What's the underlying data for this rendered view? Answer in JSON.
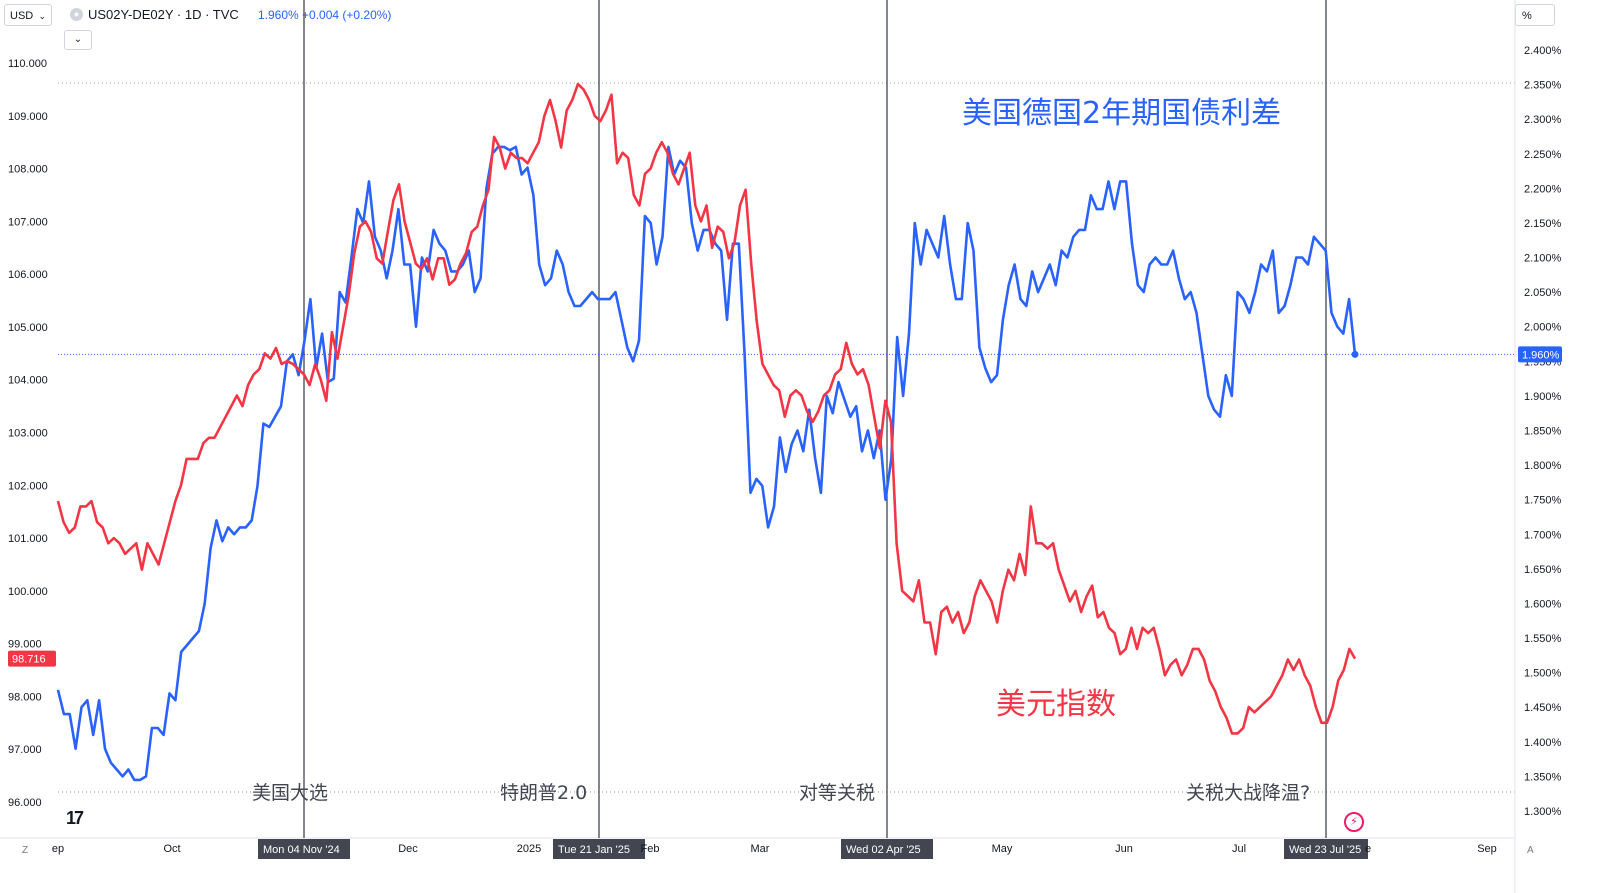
{
  "header": {
    "currency_select": "USD",
    "symbol": "US02Y-DE02Y · 1D · TVC",
    "price_text": "1.960% +0.004 (+0.20%)",
    "right_unit": "%"
  },
  "bottom": {
    "z_label": "Z",
    "a_label": "A"
  },
  "chart_data": {
    "type": "line",
    "left_axis": {
      "ticks": [
        "110.000",
        "109.000",
        "108.000",
        "107.000",
        "106.000",
        "105.000",
        "104.000",
        "103.000",
        "102.000",
        "101.000",
        "100.000",
        "99.000",
        "98.000",
        "97.000",
        "96.000"
      ],
      "ylim": [
        96.0,
        110.0
      ],
      "current_label": "98.716"
    },
    "right_axis": {
      "ticks": [
        "2.400%",
        "2.350%",
        "2.300%",
        "2.250%",
        "2.200%",
        "2.150%",
        "2.100%",
        "2.050%",
        "2.000%",
        "1.950%",
        "1.900%",
        "1.850%",
        "1.800%",
        "1.750%",
        "1.700%",
        "1.650%",
        "1.600%",
        "1.550%",
        "1.500%",
        "1.450%",
        "1.400%",
        "1.350%",
        "1.300%"
      ],
      "ylim": [
        1.3,
        2.4
      ],
      "current_label": "1.960%"
    },
    "x_ticks": [
      "ep",
      "Oct",
      "Dec",
      "2025",
      "Feb",
      "Mar",
      "May",
      "Jun",
      "Jul",
      "e",
      "Sep"
    ],
    "highlighted_dates": [
      "Mon 04 Nov '24",
      "Tue 21 Jan '25",
      "Wed 02 Apr '25",
      "Wed 23 Jul '25"
    ],
    "event_labels": [
      "美国大选",
      "特朗普2.0",
      "对等关税",
      "关税大战降温?"
    ],
    "annotations": [
      "美国德国2年期国债利差",
      "美元指数"
    ],
    "colors": {
      "spread": "#2962ff",
      "dxy": "#f23645"
    },
    "series": [
      {
        "name": "美国德国2年期国债利差",
        "axis": "right",
        "values": [
          1.475,
          1.44,
          1.44,
          1.39,
          1.45,
          1.46,
          1.41,
          1.46,
          1.39,
          1.37,
          1.36,
          1.35,
          1.36,
          1.345,
          1.345,
          1.35,
          1.42,
          1.42,
          1.41,
          1.47,
          1.46,
          1.53,
          1.54,
          1.55,
          1.56,
          1.6,
          1.68,
          1.72,
          1.69,
          1.71,
          1.7,
          1.71,
          1.71,
          1.72,
          1.77,
          1.86,
          1.855,
          1.87,
          1.885,
          1.95,
          1.96,
          1.93,
          1.98,
          2.04,
          1.94,
          1.99,
          1.92,
          1.925,
          2.05,
          2.035,
          2.1,
          2.17,
          2.15,
          2.21,
          2.13,
          2.11,
          2.07,
          2.11,
          2.17,
          2.09,
          2.09,
          2.0,
          2.1,
          2.08,
          2.14,
          2.12,
          2.11,
          2.08,
          2.08,
          2.09,
          2.11,
          2.05,
          2.07,
          2.2,
          2.25,
          2.26,
          2.26,
          2.255,
          2.26,
          2.22,
          2.23,
          2.19,
          2.09,
          2.06,
          2.07,
          2.11,
          2.09,
          2.05,
          2.03,
          2.03,
          2.04,
          2.05,
          2.04,
          2.04,
          2.04,
          2.05,
          2.01,
          1.97,
          1.95,
          1.98,
          2.16,
          2.15,
          2.09,
          2.13,
          2.26,
          2.22,
          2.24,
          2.23,
          2.15,
          2.11,
          2.14,
          2.14,
          2.12,
          2.11,
          2.01,
          2.12,
          2.12,
          1.96,
          1.76,
          1.78,
          1.77,
          1.71,
          1.74,
          1.84,
          1.79,
          1.83,
          1.85,
          1.82,
          1.88,
          1.81,
          1.76,
          1.9,
          1.875,
          1.92,
          1.895,
          1.87,
          1.885,
          1.82,
          1.85,
          1.81,
          1.85,
          1.75,
          1.81,
          1.985,
          1.9,
          1.99,
          2.15,
          2.09,
          2.14,
          2.12,
          2.1,
          2.16,
          2.09,
          2.04,
          2.04,
          2.15,
          2.11,
          1.97,
          1.94,
          1.92,
          1.93,
          2.01,
          2.06,
          2.09,
          2.04,
          2.03,
          2.08,
          2.05,
          2.07,
          2.09,
          2.06,
          2.11,
          2.1,
          2.13,
          2.14,
          2.14,
          2.19,
          2.17,
          2.17,
          2.21,
          2.17,
          2.21,
          2.21,
          2.12,
          2.06,
          2.05,
          2.09,
          2.1,
          2.09,
          2.09,
          2.11,
          2.07,
          2.04,
          2.05,
          2.02,
          1.96,
          1.9,
          1.88,
          1.87,
          1.93,
          1.9,
          2.05,
          2.04,
          2.02,
          2.05,
          2.09,
          2.08,
          2.11,
          2.02,
          2.03,
          2.06,
          2.1,
          2.1,
          2.09,
          2.13,
          2.12,
          2.11,
          2.02,
          2.0,
          1.99,
          2.04,
          1.96
        ]
      },
      {
        "name": "美元指数",
        "axis": "left",
        "values": [
          101.7,
          101.3,
          101.1,
          101.2,
          101.6,
          101.6,
          101.7,
          101.3,
          101.2,
          100.9,
          101.0,
          100.9,
          100.7,
          100.8,
          100.9,
          100.4,
          100.9,
          100.7,
          100.5,
          100.9,
          101.3,
          101.7,
          102.0,
          102.5,
          102.5,
          102.5,
          102.8,
          102.9,
          102.9,
          103.1,
          103.3,
          103.5,
          103.7,
          103.5,
          103.9,
          104.1,
          104.2,
          104.5,
          104.4,
          104.6,
          104.3,
          104.35,
          104.3,
          104.2,
          104.1,
          103.9,
          104.3,
          104.0,
          103.6,
          104.9,
          104.4,
          105.0,
          105.6,
          106.4,
          106.9,
          107.0,
          106.8,
          106.3,
          106.2,
          106.8,
          107.4,
          107.7,
          107.0,
          106.6,
          106.2,
          106.1,
          106.3,
          105.9,
          106.3,
          106.3,
          105.8,
          105.9,
          106.2,
          106.4,
          106.8,
          106.9,
          107.3,
          107.6,
          108.6,
          108.4,
          108.0,
          108.3,
          108.2,
          108.2,
          108.1,
          108.3,
          108.5,
          109.0,
          109.3,
          108.9,
          108.4,
          109.1,
          109.3,
          109.6,
          109.5,
          109.3,
          109.0,
          108.9,
          109.1,
          109.4,
          108.1,
          108.3,
          108.2,
          107.5,
          107.3,
          107.9,
          108.0,
          108.3,
          108.5,
          108.3,
          107.9,
          107.7,
          108.0,
          108.3,
          107.3,
          107.0,
          107.3,
          106.5,
          106.9,
          106.8,
          106.3,
          106.6,
          107.3,
          107.6,
          106.2,
          105.1,
          104.3,
          104.1,
          103.9,
          103.8,
          103.3,
          103.7,
          103.8,
          103.7,
          103.4,
          103.2,
          103.4,
          103.7,
          103.8,
          104.1,
          104.2,
          104.7,
          104.3,
          104.1,
          104.2,
          103.9,
          103.3,
          102.7,
          103.6,
          103.2,
          100.9,
          100.0,
          99.9,
          99.8,
          100.2,
          99.4,
          99.4,
          98.8,
          99.6,
          99.7,
          99.4,
          99.6,
          99.2,
          99.4,
          99.9,
          100.2,
          100.0,
          99.8,
          99.4,
          100.0,
          100.4,
          100.2,
          100.7,
          100.3,
          101.6,
          100.9,
          100.9,
          100.8,
          100.9,
          100.4,
          100.1,
          99.8,
          100.0,
          99.6,
          99.9,
          100.1,
          99.5,
          99.6,
          99.3,
          99.2,
          98.8,
          98.9,
          99.3,
          98.9,
          99.3,
          99.2,
          99.3,
          98.9,
          98.4,
          98.6,
          98.7,
          98.4,
          98.6,
          98.9,
          98.9,
          98.7,
          98.3,
          98.1,
          97.8,
          97.6,
          97.3,
          97.3,
          97.4,
          97.8,
          97.7,
          97.8,
          97.9,
          98.0,
          98.2,
          98.4,
          98.7,
          98.5,
          98.7,
          98.4,
          98.2,
          97.8,
          97.5,
          97.5,
          97.8,
          98.3,
          98.5,
          98.9,
          98.716
        ]
      }
    ]
  }
}
